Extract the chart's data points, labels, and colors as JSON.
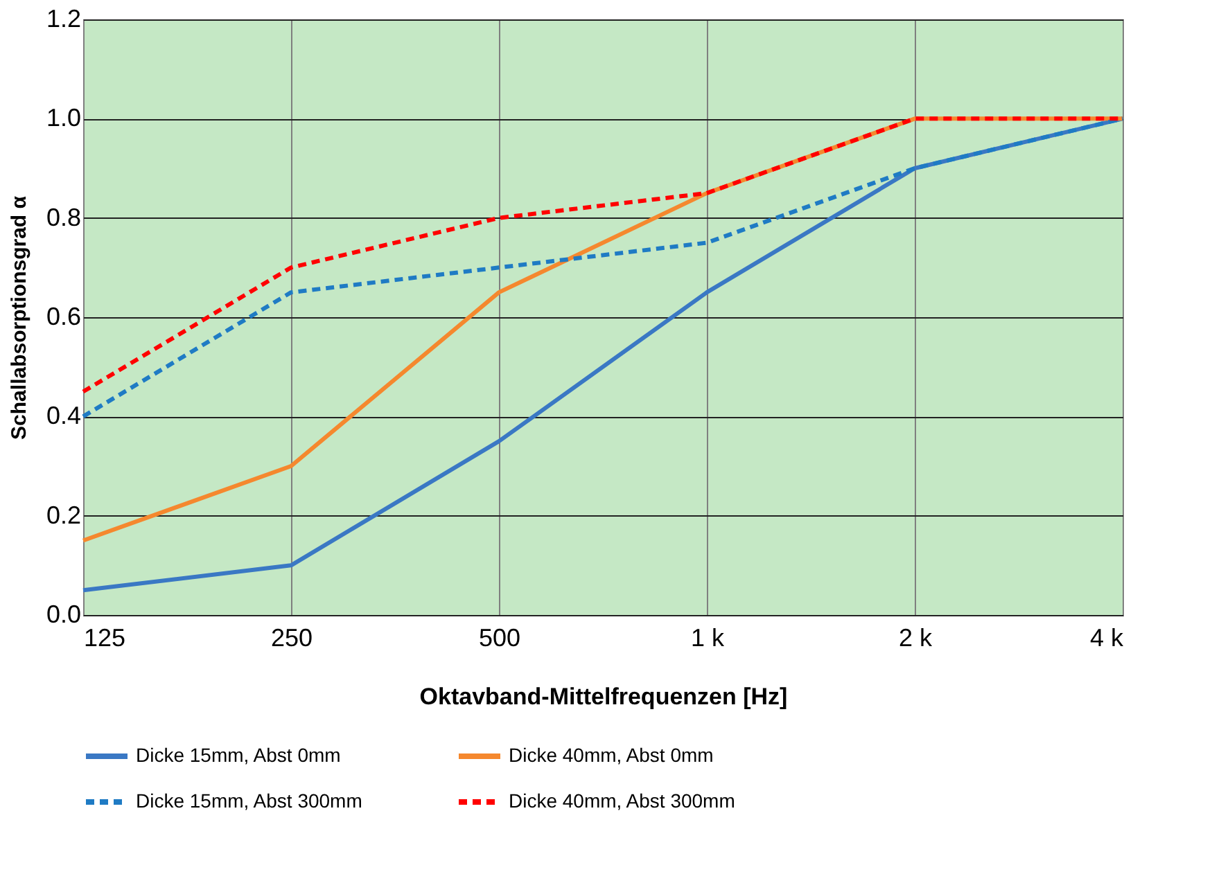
{
  "chart_data": {
    "type": "line",
    "xlabel": "Oktavband-Mittelfrequenzen [Hz]",
    "ylabel": "Schallabsorptionsgrad α",
    "categories": [
      "125",
      "250",
      "500",
      "1 k",
      "2 k",
      "4 k"
    ],
    "ylim": [
      0,
      1.2
    ],
    "yticks": [
      {
        "value": 0,
        "label": "0.0"
      },
      {
        "value": 0.2,
        "label": "0.2"
      },
      {
        "value": 0.4,
        "label": "0.4"
      },
      {
        "value": 0.6,
        "label": "0.6"
      },
      {
        "value": 0.8,
        "label": "0.8"
      },
      {
        "value": 1.0,
        "label": "1.0"
      },
      {
        "value": 1.2,
        "label": "1.2"
      }
    ],
    "grid": true,
    "legend": "bottom",
    "marker": "none",
    "series": [
      {
        "name": "Dicke 15mm, Abst 0mm",
        "color": "#3a78c4",
        "line_style": "solid",
        "values": [
          0.05,
          0.1,
          0.35,
          0.65,
          0.9,
          1.0
        ]
      },
      {
        "name": "Dicke 40mm, Abst 0mm",
        "color": "#f5882e",
        "line_style": "solid",
        "values": [
          0.15,
          0.3,
          0.65,
          0.85,
          1.0,
          1.0
        ]
      },
      {
        "name": "Dicke 15mm, Abst 300mm",
        "color": "#1f7bc4",
        "line_style": "dashed",
        "values": [
          0.4,
          0.65,
          0.7,
          0.75,
          0.9,
          1.0
        ]
      },
      {
        "name": "Dicke 40mm, Abst 300mm",
        "color": "#ff0000",
        "line_style": "dashed",
        "values": [
          0.45,
          0.7,
          0.8,
          0.85,
          1.0,
          1.0
        ]
      }
    ]
  }
}
